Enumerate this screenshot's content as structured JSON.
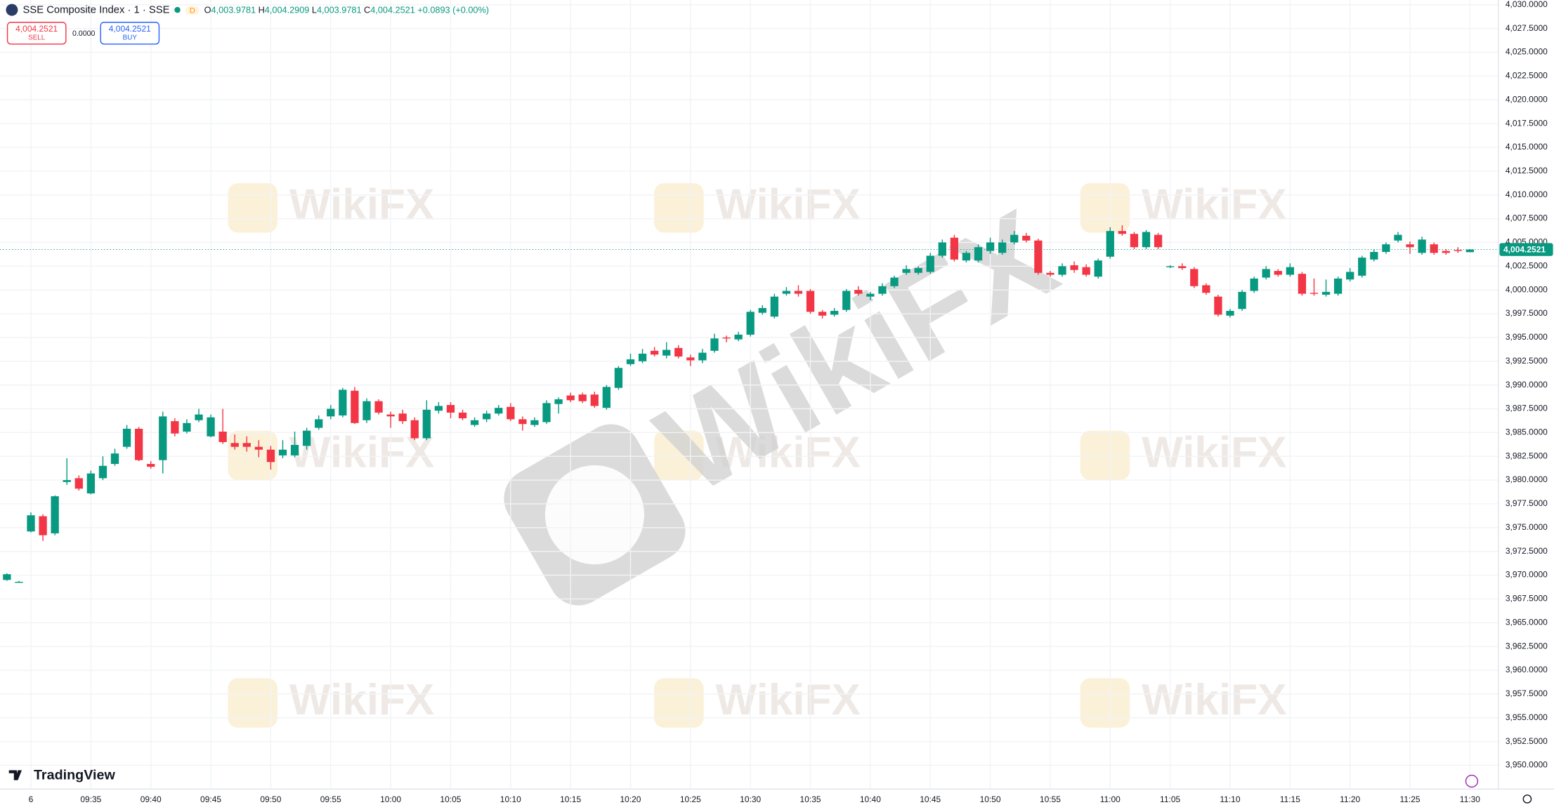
{
  "header": {
    "symbol": "SSE Composite Index · 1 · SSE",
    "interval_badge": "D",
    "open_label": "O",
    "open": "4,003.9781",
    "high_label": "H",
    "high": "4,004.2909",
    "low_label": "L",
    "low": "4,003.9781",
    "close_label": "C",
    "close": "4,004.2521",
    "change": "+0.0893 (+0.00%)"
  },
  "trade_panel": {
    "sell_price": "4,004.2521",
    "sell_label": "SELL",
    "spread": "0.0000",
    "buy_price": "4,004.2521",
    "buy_label": "BUY"
  },
  "branding": "TradingView",
  "watermark": "WikiFX",
  "chart_data": {
    "type": "candlestick",
    "x": [
      null,
      null,
      "6",
      null,
      null,
      null,
      null,
      "09:35",
      null,
      null,
      null,
      null,
      "09:40",
      null,
      null,
      null,
      null,
      "09:45",
      null,
      null,
      null,
      null,
      "09:50",
      null,
      null,
      null,
      null,
      "09:55",
      null,
      null,
      null,
      null,
      "10:00",
      null,
      null,
      null,
      null,
      "10:05",
      null,
      null,
      null,
      null,
      "10:10",
      null,
      null,
      null,
      null,
      "10:15",
      null,
      null,
      null,
      null,
      "10:20",
      null,
      null,
      null,
      null,
      "10:25",
      null,
      null,
      null,
      null,
      "10:30",
      null,
      null,
      null,
      null,
      "10:35",
      null,
      null,
      null,
      null,
      "10:40",
      null,
      null,
      null,
      null,
      "10:45",
      null,
      null,
      null,
      null,
      "10:50",
      null,
      null,
      null,
      null,
      "10:55",
      null,
      null,
      null,
      null,
      "11:00",
      null,
      null,
      null,
      null,
      "11:05",
      null,
      null,
      null,
      null,
      "11:10",
      null,
      null,
      null,
      null,
      "11:15",
      null,
      null,
      null,
      null,
      "11:20",
      null,
      null,
      null,
      null,
      "11:25",
      null,
      null,
      null,
      null,
      "11:30"
    ],
    "open": [
      3969.5,
      3969.3,
      3974.6,
      3976.2,
      3974.4,
      3979.8,
      3980.2,
      3978.6,
      3980.2,
      3981.7,
      3983.5,
      3985.4,
      3981.7,
      3982.1,
      3986.2,
      3985.1,
      3986.3,
      3984.6,
      3985.1,
      3983.9,
      3983.9,
      3983.5,
      3983.2,
      3982.6,
      3982.6,
      3983.6,
      3985.5,
      3986.7,
      3986.8,
      3989.4,
      3986.3,
      3988.3,
      3986.9,
      3987.0,
      3986.3,
      3984.4,
      3987.3,
      3987.9,
      3987.1,
      3985.8,
      3986.4,
      3987.0,
      3987.7,
      3986.4,
      3985.8,
      3986.1,
      3988.0,
      3988.9,
      3989.0,
      3989.0,
      3987.6,
      3989.7,
      3992.2,
      3992.5,
      3993.6,
      3993.1,
      3993.9,
      3992.9,
      3992.6,
      3993.6,
      3995.0,
      3994.8,
      3995.3,
      3997.6,
      3997.2,
      3999.6,
      3999.9,
      3999.9,
      3997.7,
      3997.4,
      3997.9,
      4000.0,
      3999.3,
      3999.6,
      4000.4,
      4001.8,
      4001.8,
      4001.9,
      4003.6,
      4005.5,
      4003.1,
      4003.1,
      4004.1,
      4003.9,
      4005.0,
      4005.7,
      4005.2,
      4001.8,
      4001.6,
      4002.6,
      4002.4,
      4001.4,
      4003.5,
      4006.2,
      4005.9,
      4004.5,
      4005.8,
      4002.4,
      4002.5,
      4002.2,
      4000.5,
      3999.3,
      3997.3,
      3998.0,
      3999.9,
      4001.3,
      4002.0,
      4001.6,
      4001.7,
      3999.7,
      3999.5,
      3999.6,
      4001.1,
      4001.5,
      4003.2,
      4004.0,
      4005.2,
      4004.8,
      4003.9,
      4004.8,
      4004.1,
      4004.2,
      4003.9781
    ],
    "high": [
      3970.2,
      3969.4,
      3976.6,
      3976.4,
      3978.4,
      3982.3,
      3980.5,
      3981.0,
      3982.5,
      3983.3,
      3985.8,
      3985.6,
      3982.0,
      3987.2,
      3986.5,
      3986.4,
      3987.5,
      3986.9,
      3987.5,
      3984.8,
      3984.6,
      3984.2,
      3983.6,
      3984.2,
      3985.1,
      3985.5,
      3986.8,
      3987.9,
      3989.7,
      3989.8,
      3988.6,
      3988.5,
      3987.2,
      3987.4,
      3986.6,
      3988.4,
      3988.2,
      3988.2,
      3987.4,
      3986.6,
      3987.3,
      3987.9,
      3988.1,
      3986.7,
      3986.6,
      3988.4,
      3988.7,
      3989.2,
      3989.2,
      3989.3,
      3990.0,
      3992.0,
      3993.3,
      3993.8,
      3994.0,
      3994.5,
      3994.2,
      3993.2,
      3993.8,
      3995.4,
      3995.2,
      3995.6,
      3997.9,
      3998.4,
      3999.6,
      4000.3,
      4000.5,
      4000.1,
      3997.9,
      3998.1,
      4000.1,
      4000.4,
      3999.8,
      4000.7,
      4001.5,
      4002.6,
      4002.5,
      4003.9,
      4005.3,
      4005.8,
      4004.1,
      4004.8,
      4005.5,
      4005.3,
      4006.2,
      4006.0,
      4005.4,
      4002.0,
      4002.8,
      4003.0,
      4002.7,
      4003.3,
      4006.6,
      4006.8,
      4006.1,
      4006.3,
      4006.0,
      4002.6,
      4002.8,
      4002.4,
      4000.7,
      3999.5,
      3998.0,
      4000.0,
      4001.4,
      4002.5,
      4002.2,
      4002.8,
      4001.9,
      4001.2,
      4001.1,
      4001.4,
      4002.3,
      4003.6,
      4004.3,
      4005.0,
      4006.1,
      4005.1,
      4005.6,
      4005.0,
      4004.3,
      4004.5,
      4004.2909
    ],
    "low": [
      3969.4,
      3969.2,
      3974.5,
      3973.6,
      3974.2,
      3979.5,
      3978.9,
      3978.5,
      3980.0,
      3981.5,
      3983.3,
      3982.0,
      3981.2,
      3980.7,
      3984.6,
      3984.9,
      3986.1,
      3984.5,
      3983.8,
      3983.2,
      3983.0,
      3982.4,
      3981.1,
      3982.3,
      3982.4,
      3983.2,
      3985.3,
      3986.4,
      3986.6,
      3985.9,
      3986.0,
      3986.9,
      3985.5,
      3985.9,
      3984.2,
      3984.2,
      3987.0,
      3986.5,
      3986.3,
      3985.6,
      3986.1,
      3986.8,
      3986.2,
      3985.2,
      3985.6,
      3985.9,
      3987.0,
      3988.2,
      3988.1,
      3987.6,
      3987.4,
      3989.5,
      3992.0,
      3992.3,
      3993.0,
      3992.8,
      3992.8,
      3992.0,
      3992.3,
      3993.4,
      3994.5,
      3994.6,
      3995.1,
      3997.4,
      3997.0,
      3999.4,
      3999.3,
      3997.5,
      3997.0,
      3997.2,
      3997.7,
      3999.4,
      3998.9,
      3999.4,
      4000.2,
      4001.6,
      4001.6,
      4001.7,
      4003.4,
      4003.0,
      4002.9,
      4002.9,
      4003.8,
      4003.7,
      4004.8,
      4005.0,
      4001.6,
      4001.4,
      4001.4,
      4001.8,
      4001.4,
      4001.2,
      4003.3,
      4005.7,
      4004.3,
      4004.3,
      4004.3,
      4002.3,
      4002.1,
      4000.2,
      3999.5,
      3997.2,
      3997.1,
      3997.8,
      3999.7,
      4001.1,
      4001.4,
      4001.4,
      3999.4,
      3999.4,
      3999.3,
      3999.4,
      4000.9,
      4001.3,
      4003.0,
      4003.8,
      4005.0,
      4003.8,
      4003.7,
      4003.7,
      4003.7,
      4003.9,
      4003.9781
    ],
    "close": [
      3970.1,
      3969.3,
      3976.3,
      3974.2,
      3978.3,
      3980.0,
      3979.1,
      3980.7,
      3981.5,
      3982.8,
      3985.4,
      3982.1,
      3981.4,
      3986.7,
      3984.9,
      3986.0,
      3986.9,
      3986.6,
      3984.0,
      3983.5,
      3983.5,
      3983.2,
      3981.9,
      3983.2,
      3983.7,
      3985.2,
      3986.4,
      3987.5,
      3989.5,
      3986.0,
      3988.3,
      3987.1,
      3986.7,
      3986.2,
      3984.4,
      3987.4,
      3987.8,
      3987.1,
      3986.5,
      3986.3,
      3987.0,
      3987.6,
      3986.4,
      3985.9,
      3986.3,
      3988.1,
      3988.5,
      3988.4,
      3988.3,
      3987.8,
      3989.8,
      3991.8,
      3992.7,
      3993.3,
      3993.2,
      3993.7,
      3993.0,
      3992.6,
      3993.4,
      3994.9,
      3994.9,
      3995.3,
      3997.7,
      3998.1,
      3999.3,
      3999.9,
      3999.6,
      3997.7,
      3997.3,
      3997.8,
      3999.9,
      3999.6,
      3999.6,
      4000.4,
      4001.3,
      4002.2,
      4002.3,
      4003.6,
      4005.0,
      4003.2,
      4003.9,
      4004.5,
      4005.0,
      4005.0,
      4005.8,
      4005.2,
      4001.8,
      4001.6,
      4002.5,
      4002.1,
      4001.6,
      4003.1,
      4006.2,
      4005.9,
      4004.5,
      4006.1,
      4004.5,
      4002.5,
      4002.3,
      4000.4,
      3999.7,
      3997.4,
      3997.8,
      3999.8,
      4001.2,
      4002.2,
      4001.6,
      4002.4,
      3999.6,
      3999.6,
      3999.8,
      4001.2,
      4001.9,
      4003.4,
      4004.0,
      4004.8,
      4005.8,
      4004.5,
      4005.3,
      4003.9,
      4003.9,
      4004.1,
      4004.2521
    ],
    "up_color": "#089981",
    "down_color": "#f23645",
    "ylim": [
      3947.5,
      4030.5
    ],
    "yticks": [
      {
        "value": 3950,
        "label": "3,950.0000"
      },
      {
        "value": 3952.5,
        "label": "3,952.5000"
      },
      {
        "value": 3955,
        "label": "3,955.0000"
      },
      {
        "value": 3957.5,
        "label": "3,957.5000"
      },
      {
        "value": 3960,
        "label": "3,960.0000"
      },
      {
        "value": 3962.5,
        "label": "3,962.5000"
      },
      {
        "value": 3965,
        "label": "3,965.0000"
      },
      {
        "value": 3967.5,
        "label": "3,967.5000"
      },
      {
        "value": 3970,
        "label": "3,970.0000"
      },
      {
        "value": 3972.5,
        "label": "3,972.5000"
      },
      {
        "value": 3975,
        "label": "3,975.0000"
      },
      {
        "value": 3977.5,
        "label": "3,977.5000"
      },
      {
        "value": 3980,
        "label": "3,980.0000"
      },
      {
        "value": 3982.5,
        "label": "3,982.5000"
      },
      {
        "value": 3985,
        "label": "3,985.0000"
      },
      {
        "value": 3987.5,
        "label": "3,987.5000"
      },
      {
        "value": 3990,
        "label": "3,990.0000"
      },
      {
        "value": 3992.5,
        "label": "3,992.5000"
      },
      {
        "value": 3995,
        "label": "3,995.0000"
      },
      {
        "value": 3997.5,
        "label": "3,997.5000"
      },
      {
        "value": 4000,
        "label": "4,000.0000"
      },
      {
        "value": 4002.5,
        "label": "4,002.5000"
      },
      {
        "value": 4005,
        "label": "4,005.0000"
      },
      {
        "value": 4007.5,
        "label": "4,007.5000"
      },
      {
        "value": 4010,
        "label": "4,010.0000"
      },
      {
        "value": 4012.5,
        "label": "4,012.5000"
      },
      {
        "value": 4015,
        "label": "4,015.0000"
      },
      {
        "value": 4017.5,
        "label": "4,017.5000"
      },
      {
        "value": 4020,
        "label": "4,020.0000"
      },
      {
        "value": 4022.5,
        "label": "4,022.5000"
      },
      {
        "value": 4025,
        "label": "4,025.0000"
      },
      {
        "value": 4027.5,
        "label": "4,027.5000"
      },
      {
        "value": 4030,
        "label": "4,030.0000"
      }
    ],
    "last_price": {
      "value": 4004.2521,
      "label": "4,004.2521"
    },
    "grid": true
  }
}
